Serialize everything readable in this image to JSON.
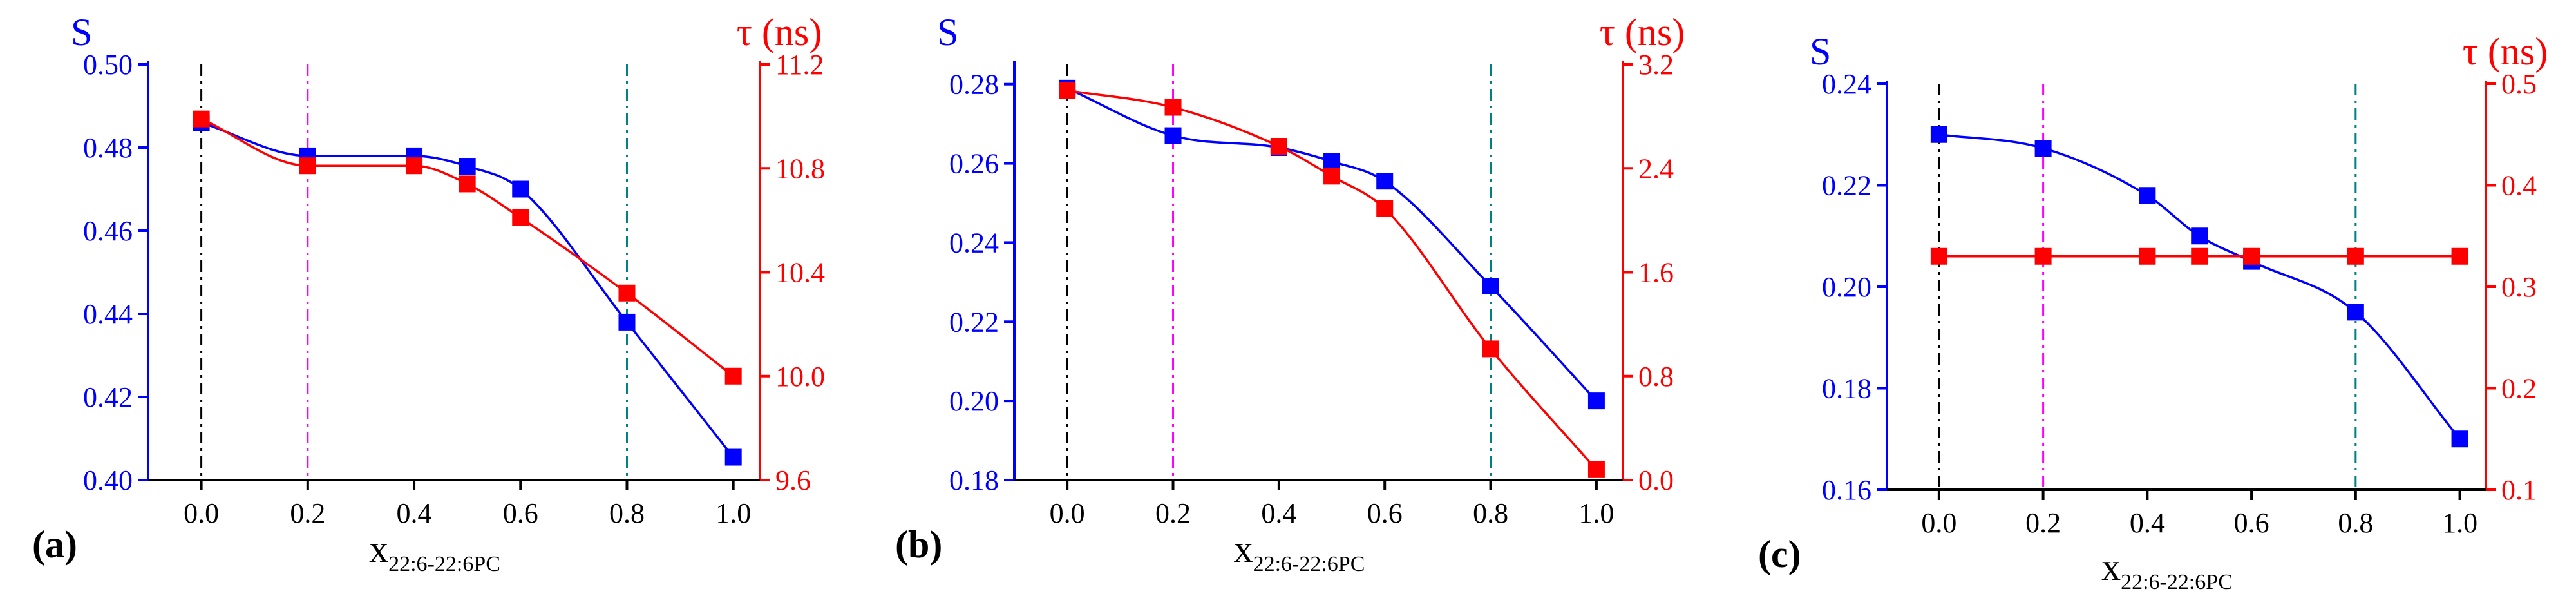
{
  "colors": {
    "left_axis": "#0000ff",
    "right_axis": "#ff0000",
    "x_axis": "#000000",
    "ref_0": "#000000",
    "ref_02": "#ff00ff",
    "ref_08": "#008080"
  },
  "chart_data": [
    {
      "type": "line",
      "panel_label": "(a)",
      "xlabel": "x",
      "xlabel_sub": "22:6-22:6PC",
      "ylabel_left": "S",
      "ylabel_right": "τ (ns)",
      "x": [
        0.0,
        0.2,
        0.4,
        0.5,
        0.6,
        0.8,
        1.0
      ],
      "xlim": [
        -0.1,
        1.05
      ],
      "xticks": [
        "0.0",
        "0.2",
        "0.4",
        "0.6",
        "0.8",
        "1.0"
      ],
      "ylim_left": [
        0.4,
        0.5
      ],
      "yticks_left": [
        "0.40",
        "0.42",
        "0.44",
        "0.46",
        "0.48",
        "0.50"
      ],
      "ylim_right": [
        9.6,
        11.2
      ],
      "yticks_right": [
        "9.6",
        "10.0",
        "10.4",
        "10.8",
        "11.2"
      ],
      "reference_lines": [
        0.0,
        0.2,
        0.8
      ],
      "series": [
        {
          "axis": "left",
          "values": [
            0.486,
            0.478,
            0.478,
            0.4755,
            0.47,
            0.438,
            0.4055
          ]
        },
        {
          "axis": "right",
          "values": [
            10.99,
            10.81,
            10.81,
            10.74,
            10.61,
            10.32,
            10.0
          ]
        }
      ]
    },
    {
      "type": "line",
      "panel_label": "(b)",
      "xlabel": "x",
      "xlabel_sub": "22:6-22:6PC",
      "ylabel_left": "S",
      "ylabel_right": "τ (ns)",
      "x": [
        0.0,
        0.2,
        0.4,
        0.5,
        0.6,
        0.8,
        1.0
      ],
      "xlim": [
        -0.1,
        1.05
      ],
      "xticks": [
        "0.0",
        "0.2",
        "0.4",
        "0.6",
        "0.8",
        "1.0"
      ],
      "ylim_left": [
        0.18,
        0.285
      ],
      "yticks_left": [
        "0.18",
        "0.20",
        "0.22",
        "0.24",
        "0.26",
        "0.28"
      ],
      "ylim_right": [
        0.0,
        3.2
      ],
      "yticks_right": [
        "0.0",
        "0.8",
        "1.6",
        "2.4",
        "3.2"
      ],
      "reference_lines": [
        0.0,
        0.2,
        0.8
      ],
      "series": [
        {
          "axis": "left",
          "values": [
            0.279,
            0.267,
            0.264,
            0.2605,
            0.2555,
            0.229,
            0.2
          ]
        },
        {
          "axis": "right",
          "values": [
            3.0,
            2.87,
            2.57,
            2.34,
            2.09,
            1.01,
            0.08
          ]
        }
      ]
    },
    {
      "type": "line",
      "panel_label": "(c)",
      "xlabel": "x",
      "xlabel_sub": "22:6-22:6PC",
      "ylabel_left": "S",
      "ylabel_right": "τ (ns)",
      "x": [
        0.0,
        0.2,
        0.4,
        0.5,
        0.6,
        0.8,
        1.0
      ],
      "xlim": [
        -0.1,
        1.05
      ],
      "xticks": [
        "0.0",
        "0.2",
        "0.4",
        "0.6",
        "0.8",
        "1.0"
      ],
      "ylim_left": [
        0.16,
        0.24
      ],
      "yticks_left": [
        "0.16",
        "0.18",
        "0.20",
        "0.22",
        "0.24"
      ],
      "ylim_right": [
        0.1,
        0.5
      ],
      "yticks_right": [
        "0.1",
        "0.2",
        "0.3",
        "0.4",
        "0.5"
      ],
      "reference_lines": [
        0.0,
        0.2,
        0.8
      ],
      "series": [
        {
          "axis": "left",
          "values": [
            0.23,
            0.2273,
            0.218,
            0.21,
            0.205,
            0.195,
            0.17
          ]
        },
        {
          "axis": "right",
          "values": [
            0.33,
            0.33,
            0.33,
            0.33,
            0.33,
            0.33,
            0.33
          ]
        }
      ]
    }
  ]
}
